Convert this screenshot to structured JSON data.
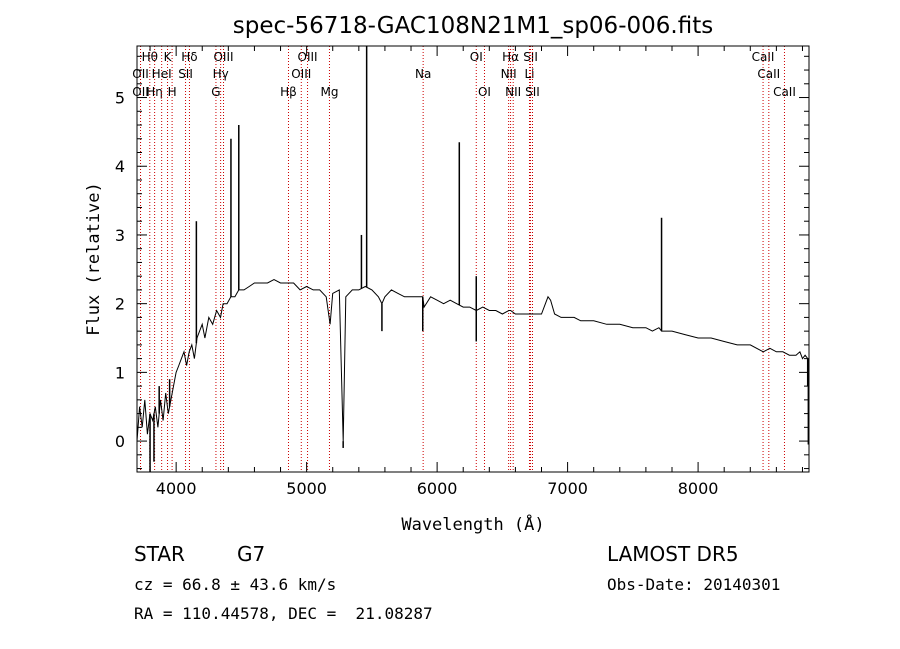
{
  "colors": {
    "axis": "#000000",
    "spectrum": "#000000",
    "lines": "#cc0000",
    "background": "#ffffff"
  },
  "chart_data": {
    "type": "line",
    "title": "spec-56718-GAC108N21M1_sp06-006.fits",
    "xlabel": "Wavelength (Å)",
    "ylabel": "Flux (relative)",
    "xlim": [
      3700,
      8850
    ],
    "ylim": [
      -0.45,
      5.75
    ],
    "xticks": [
      4000,
      5000,
      6000,
      7000,
      8000
    ],
    "yticks": [
      0,
      1,
      2,
      3,
      4,
      5
    ],
    "grid": false,
    "series": [
      {
        "x": [
          3700,
          3720,
          3740,
          3760,
          3780,
          3800,
          3820,
          3840,
          3860,
          3880,
          3900,
          3920,
          3940,
          3960,
          3980,
          4000,
          4020,
          4040,
          4060,
          4080,
          4100,
          4120,
          4140,
          4160,
          4180,
          4200,
          4220,
          4250,
          4280,
          4310,
          4340,
          4360,
          4390,
          4420,
          4450,
          4480,
          4520,
          4560,
          4600,
          4650,
          4700,
          4750,
          4800,
          4850,
          4900,
          4950,
          5000,
          5050,
          5100,
          5150,
          5180,
          5200,
          5250,
          5280,
          5300,
          5350,
          5400,
          5450,
          5500,
          5550,
          5577,
          5600,
          5650,
          5700,
          5750,
          5800,
          5850,
          5890,
          5900,
          5950,
          6000,
          6050,
          6100,
          6150,
          6200,
          6250,
          6300,
          6350,
          6400,
          6450,
          6500,
          6550,
          6563,
          6600,
          6650,
          6700,
          6750,
          6800,
          6850,
          6870,
          6900,
          6950,
          7000,
          7050,
          7100,
          7200,
          7300,
          7400,
          7500,
          7600,
          7650,
          7700,
          7720,
          7750,
          7800,
          7900,
          8000,
          8100,
          8200,
          8300,
          8400,
          8500,
          8550,
          8600,
          8650,
          8700,
          8750,
          8780,
          8800,
          8820,
          8840
        ],
        "y": [
          0.0,
          0.5,
          0.2,
          0.6,
          0.1,
          0.4,
          0.3,
          0.5,
          0.2,
          0.6,
          0.3,
          0.7,
          0.4,
          0.6,
          0.8,
          1.0,
          1.1,
          1.2,
          1.3,
          1.1,
          1.3,
          1.4,
          1.2,
          1.5,
          1.6,
          1.7,
          1.5,
          1.8,
          1.7,
          1.9,
          1.8,
          2.0,
          2.0,
          2.1,
          2.1,
          2.2,
          2.2,
          2.25,
          2.3,
          2.3,
          2.3,
          2.35,
          2.3,
          2.3,
          2.3,
          2.2,
          2.25,
          2.2,
          2.2,
          2.1,
          1.7,
          2.15,
          2.2,
          0.0,
          2.1,
          2.2,
          2.2,
          2.25,
          2.2,
          2.1,
          2.0,
          2.1,
          2.2,
          2.15,
          2.1,
          2.1,
          2.1,
          2.1,
          1.95,
          2.1,
          2.05,
          2.0,
          2.05,
          2.0,
          1.95,
          1.95,
          1.9,
          1.95,
          1.9,
          1.9,
          1.85,
          1.9,
          1.9,
          1.85,
          1.85,
          1.85,
          1.85,
          1.85,
          2.1,
          2.05,
          1.85,
          1.8,
          1.8,
          1.8,
          1.75,
          1.75,
          1.7,
          1.7,
          1.65,
          1.65,
          1.6,
          1.65,
          1.6,
          1.6,
          1.6,
          1.55,
          1.5,
          1.5,
          1.45,
          1.4,
          1.4,
          1.3,
          1.35,
          1.3,
          1.3,
          1.25,
          1.25,
          1.3,
          1.2,
          1.25,
          1.2
        ],
        "peaks": [
          {
            "x": 3760,
            "y": 0.6
          },
          {
            "x": 3870,
            "y": 0.8
          },
          {
            "x": 3950,
            "y": 0.9
          },
          {
            "x": 4155,
            "y": 3.2
          },
          {
            "x": 4420,
            "y": 4.4
          },
          {
            "x": 4480,
            "y": 4.6
          },
          {
            "x": 5280,
            "y": -0.1
          },
          {
            "x": 5420,
            "y": 3.0
          },
          {
            "x": 5460,
            "y": 5.75
          },
          {
            "x": 5577,
            "y": 1.6
          },
          {
            "x": 5890,
            "y": 1.6
          },
          {
            "x": 6170,
            "y": 4.35
          },
          {
            "x": 6300,
            "y": 2.4
          },
          {
            "x": 6300,
            "y": 1.45
          },
          {
            "x": 7720,
            "y": 3.25
          },
          {
            "x": 8840,
            "y": 0.8
          },
          {
            "x": 8845,
            "y": -0.05
          },
          {
            "x": 3800,
            "y": -0.45
          },
          {
            "x": 3830,
            "y": -0.3
          }
        ]
      }
    ],
    "line_markers": [
      {
        "label": "Hθ",
        "x": 3798,
        "row": 0
      },
      {
        "label": "OII",
        "x": 3727,
        "row": 1
      },
      {
        "label": "OII",
        "x": 3727,
        "row": 2
      },
      {
        "label": "Hη",
        "x": 3835,
        "row": 2
      },
      {
        "label": "HeI",
        "x": 3889,
        "row": 1
      },
      {
        "label": "K",
        "x": 3934,
        "row": 0
      },
      {
        "label": "H",
        "x": 3969,
        "row": 2
      },
      {
        "label": "Hδ",
        "x": 4102,
        "row": 0
      },
      {
        "label": "SII",
        "x": 4072,
        "row": 1
      },
      {
        "label": "OIII",
        "x": 4363,
        "row": 0
      },
      {
        "label": "Hγ",
        "x": 4341,
        "row": 1
      },
      {
        "label": "G",
        "x": 4305,
        "row": 2
      },
      {
        "label": "Hβ",
        "x": 4861,
        "row": 2
      },
      {
        "label": "OIII",
        "x": 5007,
        "row": 0
      },
      {
        "label": "OIII",
        "x": 4959,
        "row": 1
      },
      {
        "label": "Mg",
        "x": 5175,
        "row": 2
      },
      {
        "label": "Na",
        "x": 5893,
        "row": 1
      },
      {
        "label": "OI",
        "x": 6300,
        "row": 0
      },
      {
        "label": "OI",
        "x": 6363,
        "row": 2
      },
      {
        "label": "Hα",
        "x": 6563,
        "row": 0
      },
      {
        "label": "NII",
        "x": 6548,
        "row": 1
      },
      {
        "label": "NII",
        "x": 6583,
        "row": 2
      },
      {
        "label": "SII",
        "x": 6716,
        "row": 0
      },
      {
        "label": "Li",
        "x": 6708,
        "row": 1
      },
      {
        "label": "SII",
        "x": 6731,
        "row": 2
      },
      {
        "label": "CaII",
        "x": 8498,
        "row": 0
      },
      {
        "label": "CaII",
        "x": 8542,
        "row": 1
      },
      {
        "label": "CaII",
        "x": 8662,
        "row": 2
      }
    ]
  },
  "info": {
    "class": "STAR",
    "subclass": "G7",
    "redshift": "cz = 66.8 ± 43.6 km/s",
    "coords": "RA = 110.44578, DEC =  21.08287",
    "survey": "LAMOST DR5",
    "obs_date": "Obs-Date: 20140301"
  }
}
